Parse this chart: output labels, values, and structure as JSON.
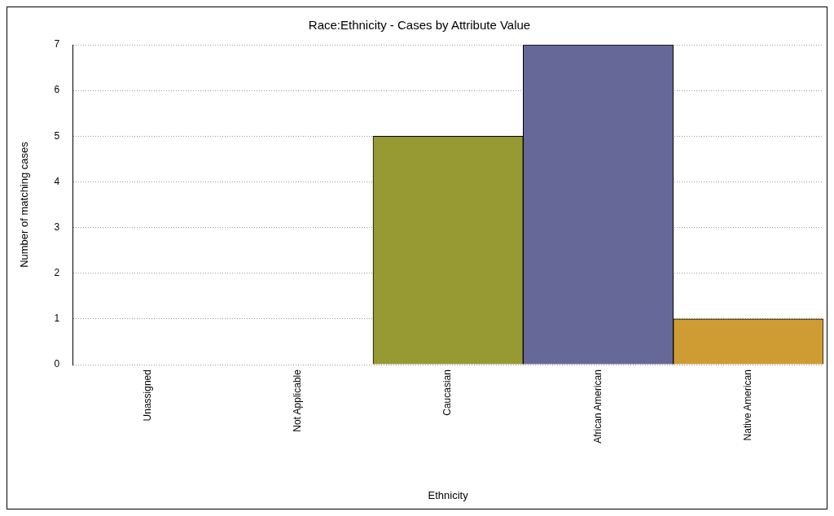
{
  "chart_data": {
    "type": "bar",
    "title": "Race:Ethnicity - Cases by Attribute Value",
    "xlabel": "Ethnicity",
    "ylabel": "Number of matching cases",
    "categories": [
      "Unassigned",
      "Not Applicable",
      "Caucasian",
      "African American",
      "Native American"
    ],
    "values": [
      0,
      0,
      5,
      7,
      1
    ],
    "colors": [
      "#979a33",
      "#666898",
      "#979a33",
      "#666898",
      "#cf9c33"
    ],
    "ylim": [
      0,
      7
    ],
    "yticks": [
      0,
      1,
      2,
      3,
      4,
      5,
      6,
      7
    ],
    "grid": "y",
    "legend": false
  }
}
